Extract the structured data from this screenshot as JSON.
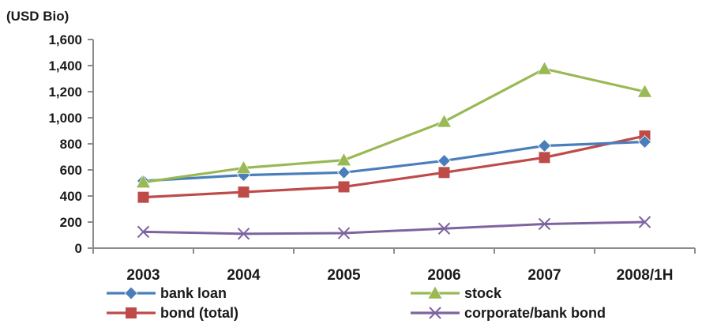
{
  "chart_data": {
    "type": "line",
    "unit_label": "(USD Bio)",
    "categories": [
      "2003",
      "2004",
      "2005",
      "2006",
      "2007",
      "2008/1H"
    ],
    "y_ticks": [
      "0",
      "200",
      "400",
      "600",
      "800",
      "1,000",
      "1,200",
      "1,400",
      "1,600"
    ],
    "ylim": [
      0,
      1600
    ],
    "grid": false,
    "legend_position": "bottom",
    "series": [
      {
        "name": "bank loan",
        "values": [
          515,
          560,
          580,
          670,
          785,
          815
        ],
        "color": "#4a7ebb",
        "marker": "diamond"
      },
      {
        "name": "stock",
        "values": [
          505,
          615,
          675,
          970,
          1375,
          1200
        ],
        "color": "#98b954",
        "marker": "triangle"
      },
      {
        "name": "bond (total)",
        "values": [
          390,
          430,
          470,
          580,
          695,
          860
        ],
        "color": "#be4b48",
        "marker": "square"
      },
      {
        "name": "corporate/bank bond",
        "values": [
          125,
          110,
          115,
          150,
          185,
          200
        ],
        "color": "#7e649e",
        "marker": "x"
      }
    ]
  }
}
